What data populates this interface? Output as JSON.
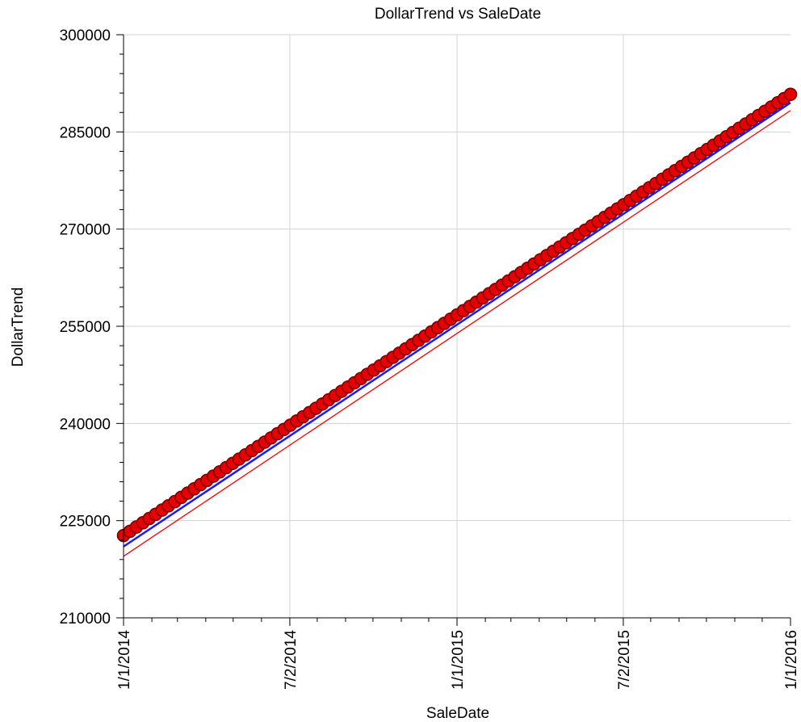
{
  "chart_data": {
    "type": "scatter",
    "title": "DollarTrend vs SaleDate",
    "xlabel": "SaleDate",
    "ylabel": "DollarTrend",
    "xlim": [
      "2014-01-01",
      "2016-01-01"
    ],
    "ylim": [
      210000,
      300000
    ],
    "x_ticks": [
      "1/1/2014",
      "7/2/2014",
      "1/1/2015",
      "7/2/2015",
      "1/1/2016"
    ],
    "x_tick_dates": [
      "2014-01-01",
      "2014-07-02",
      "2015-01-01",
      "2015-07-02",
      "2016-01-01"
    ],
    "y_ticks": [
      "210000",
      "225000",
      "240000",
      "255000",
      "270000",
      "285000",
      "300000"
    ],
    "y_tick_values": [
      210000,
      225000,
      240000,
      255000,
      270000,
      285000,
      300000
    ],
    "grid": true,
    "legend": "none",
    "points": {
      "start_date": "2014-01-01",
      "end_date": "2016-01-01",
      "count": 105,
      "start_value": 222700,
      "end_value": 290800
    },
    "fit_line": {
      "start": [
        "2014-01-01",
        221000
      ],
      "end": [
        "2016-01-01",
        289500
      ],
      "color": "#1a1aff"
    },
    "confidence_band": {
      "upper": {
        "start": [
          "2014-01-01",
          222500
        ],
        "end": [
          "2016-01-01",
          290600
        ]
      },
      "lower": {
        "start": [
          "2014-01-01",
          219500
        ],
        "end": [
          "2016-01-01",
          288300
        ]
      },
      "color": "#ff0000"
    },
    "colors": {
      "marker_fill": "#e60000",
      "marker_stroke": "#7a0000",
      "grid": "#d3d3d3"
    }
  }
}
